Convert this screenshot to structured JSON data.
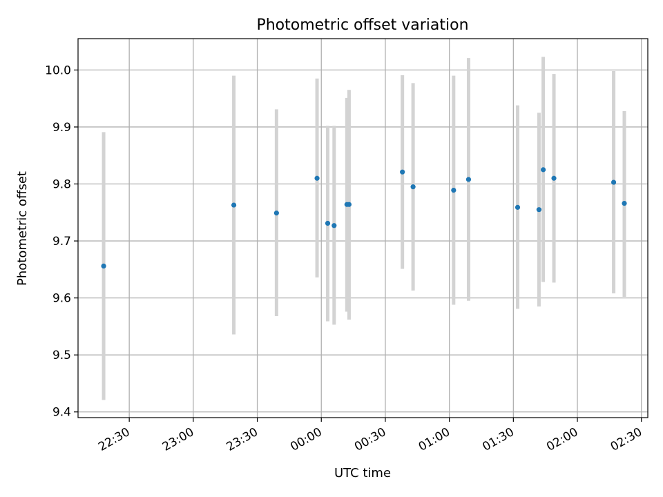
{
  "chart_data": {
    "type": "scatter",
    "title": "Photometric offset variation",
    "xlabel": "UTC time",
    "ylabel": "Photometric offset",
    "xlim": [
      "22:06",
      "02:33"
    ],
    "ylim": [
      9.39,
      10.055
    ],
    "grid": true,
    "x_ticks": [
      "22:30",
      "23:00",
      "23:30",
      "00:00",
      "00:30",
      "01:00",
      "01:30",
      "02:00",
      "02:30"
    ],
    "y_ticks": [
      "9.4",
      "9.5",
      "9.6",
      "9.7",
      "9.8",
      "9.9",
      "10.0"
    ],
    "points": [
      {
        "x": "22:18",
        "y": 9.656,
        "ylow": 9.421,
        "yhigh": 9.891
      },
      {
        "x": "23:19",
        "y": 9.763,
        "ylow": 9.536,
        "yhigh": 9.99
      },
      {
        "x": "23:39",
        "y": 9.749,
        "ylow": 9.568,
        "yhigh": 9.931
      },
      {
        "x": "23:58",
        "y": 9.81,
        "ylow": 9.636,
        "yhigh": 9.985
      },
      {
        "x": "00:03",
        "y": 9.731,
        "ylow": 9.559,
        "yhigh": 9.902
      },
      {
        "x": "00:06",
        "y": 9.727,
        "ylow": 9.553,
        "yhigh": 9.902
      },
      {
        "x": "00:12",
        "y": 9.764,
        "ylow": 9.576,
        "yhigh": 9.951
      },
      {
        "x": "00:13",
        "y": 9.764,
        "ylow": 9.562,
        "yhigh": 9.965
      },
      {
        "x": "00:38",
        "y": 9.821,
        "ylow": 9.651,
        "yhigh": 9.991
      },
      {
        "x": "00:43",
        "y": 9.795,
        "ylow": 9.613,
        "yhigh": 9.977
      },
      {
        "x": "01:02",
        "y": 9.789,
        "ylow": 9.588,
        "yhigh": 9.99
      },
      {
        "x": "01:09",
        "y": 9.808,
        "ylow": 9.595,
        "yhigh": 10.021
      },
      {
        "x": "01:32",
        "y": 9.759,
        "ylow": 9.581,
        "yhigh": 9.938
      },
      {
        "x": "01:42",
        "y": 9.755,
        "ylow": 9.585,
        "yhigh": 9.925
      },
      {
        "x": "01:44",
        "y": 9.825,
        "ylow": 9.628,
        "yhigh": 10.023
      },
      {
        "x": "01:49",
        "y": 9.81,
        "ylow": 9.627,
        "yhigh": 9.993
      },
      {
        "x": "02:17",
        "y": 9.803,
        "ylow": 9.608,
        "yhigh": 9.998
      },
      {
        "x": "02:22",
        "y": 9.766,
        "ylow": 9.602,
        "yhigh": 9.928
      }
    ],
    "colors": {
      "marker": "#1f77b4",
      "errorbar": "#d3d3d3",
      "grid": "#b0b0b0"
    }
  }
}
